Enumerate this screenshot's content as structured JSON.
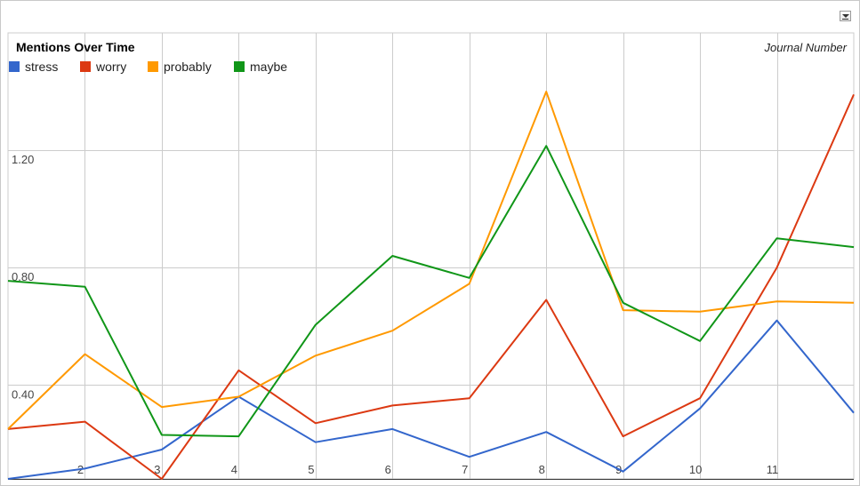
{
  "chart_data": {
    "type": "line",
    "title": "Mentions Over Time",
    "xlabel": "Journal Number",
    "ylabel": "",
    "x": [
      1,
      2,
      3,
      4,
      5,
      6,
      7,
      8,
      9,
      10,
      11,
      12
    ],
    "x_tick_labels": [
      "2",
      "3",
      "4",
      "5",
      "6",
      "7",
      "8",
      "9",
      "10",
      "11"
    ],
    "x_ticks": [
      2,
      3,
      4,
      5,
      6,
      7,
      8,
      9,
      10,
      11
    ],
    "y_tick_labels": [
      "0.40",
      "0.80",
      "1.20"
    ],
    "y_ticks": [
      0.4,
      0.8,
      1.2
    ],
    "ylim": [
      0.08,
      1.6
    ],
    "xlim": [
      1,
      12
    ],
    "grid": true,
    "legend_position": "top-left",
    "series": [
      {
        "name": "stress",
        "color": "#3366cc",
        "values": [
          0.08,
          0.115,
          0.18,
          0.36,
          0.205,
          0.25,
          0.155,
          0.24,
          0.105,
          0.32,
          0.62,
          0.305
        ]
      },
      {
        "name": "worry",
        "color": "#dc3912",
        "values": [
          0.25,
          0.275,
          0.08,
          0.45,
          0.27,
          0.33,
          0.355,
          0.69,
          0.225,
          0.355,
          0.8,
          1.39
        ]
      },
      {
        "name": "probably",
        "color": "#ff9900",
        "values": [
          0.25,
          0.505,
          0.325,
          0.36,
          0.5,
          0.585,
          0.745,
          1.4,
          0.655,
          0.65,
          0.685,
          0.68
        ]
      },
      {
        "name": "maybe",
        "color": "#109618",
        "values": [
          0.755,
          0.735,
          0.23,
          0.225,
          0.605,
          0.84,
          0.765,
          1.215,
          0.68,
          0.55,
          0.9,
          0.87
        ]
      }
    ]
  },
  "toolbar": {
    "menu_icon": "dropdown-menu-icon"
  }
}
